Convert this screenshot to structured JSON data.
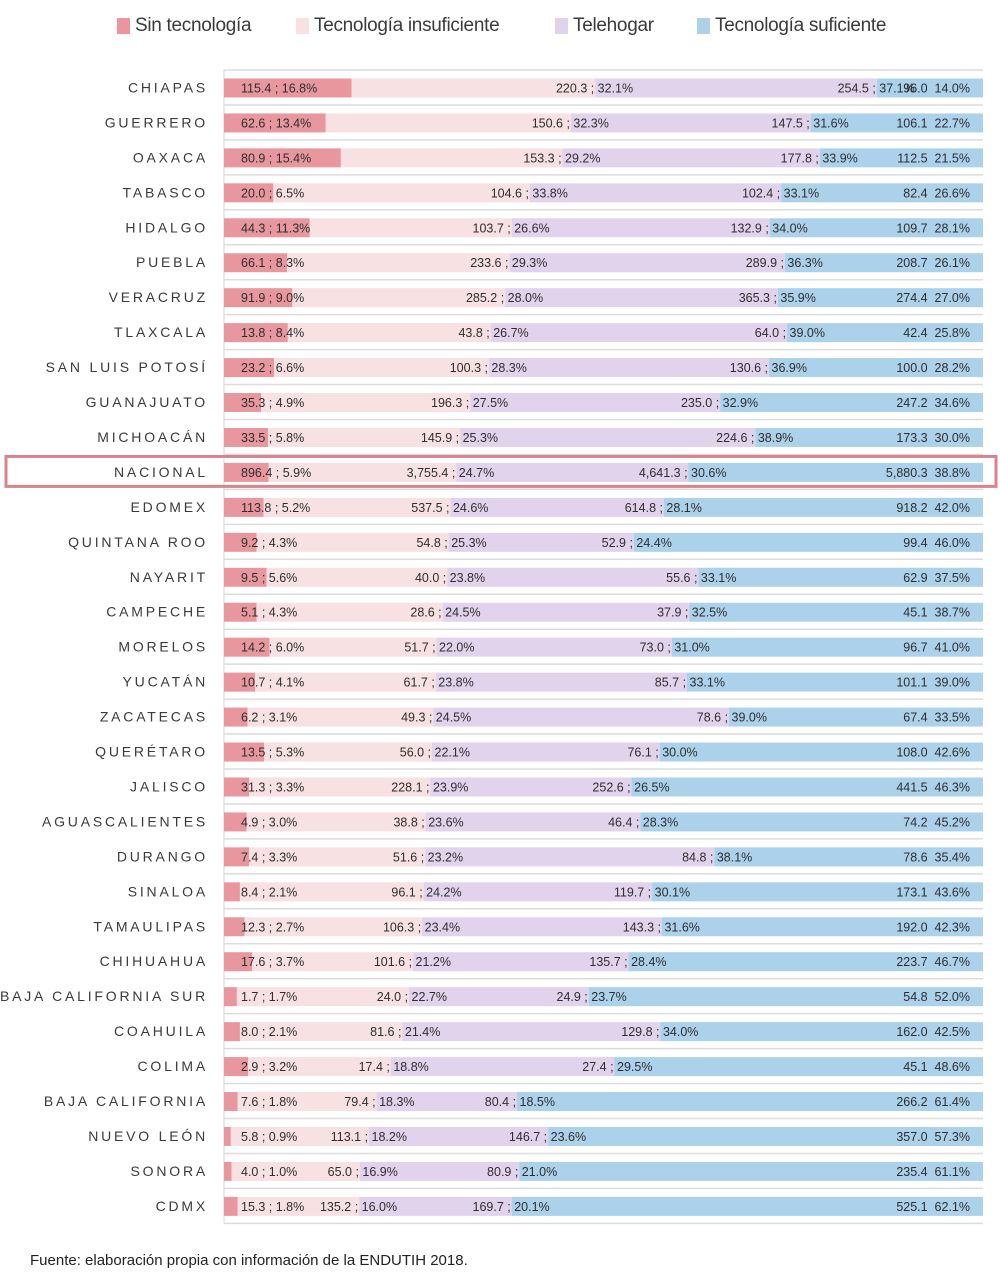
{
  "chart_data": {
    "type": "bar",
    "orientation": "horizontal",
    "stacked": "100%",
    "title": "",
    "xlabel": "",
    "ylabel": "",
    "legend_position": "top",
    "grid": true,
    "highlighted_category": "NACIONAL",
    "highlight_color": "#d9848c",
    "series": [
      {
        "name": "Sin tecnología",
        "color": "#e8979e",
        "values": [
          115.4,
          62.6,
          80.9,
          20.0,
          44.3,
          66.1,
          91.9,
          13.8,
          23.2,
          35.3,
          33.5,
          896.4,
          113.8,
          9.2,
          9.5,
          5.1,
          14.2,
          10.7,
          6.2,
          13.5,
          31.3,
          4.9,
          7.4,
          8.4,
          12.3,
          17.6,
          1.7,
          8.0,
          2.9,
          7.6,
          5.8,
          4.0,
          15.3
        ],
        "percents": [
          16.8,
          13.4,
          15.4,
          6.5,
          11.3,
          8.3,
          9.0,
          8.4,
          6.6,
          4.9,
          5.8,
          5.9,
          5.2,
          4.3,
          5.6,
          4.3,
          6.0,
          4.1,
          3.1,
          5.3,
          3.3,
          3.0,
          3.3,
          2.1,
          2.7,
          3.7,
          1.7,
          2.1,
          3.2,
          1.8,
          0.9,
          1.0,
          1.8
        ],
        "labels": [
          "115.4 ; 16.8%",
          "62.6 ; 13.4%",
          "80.9 ; 15.4%",
          "20.0 ; 6.5%",
          "44.3 ; 11.3%",
          "66.1 ; 8.3%",
          "91.9 ; 9.0%",
          "13.8 ; 8.4%",
          "23.2 ; 6.6%",
          "35.3 ; 4.9%",
          "33.5 ; 5.8%",
          "896.4 ; 5.9%",
          "113.8 ; 5.2%",
          "9.2 ; 4.3%",
          "9.5 ; 5.6%",
          "5.1 ; 4.3%",
          "14.2 ; 6.0%",
          "10.7 ; 4.1%",
          "6.2 ; 3.1%",
          "13.5 ; 5.3%",
          "31.3 ; 3.3%",
          "4.9 ; 3.0%",
          "7.4 ; 3.3%",
          "8.4 ; 2.1%",
          "12.3 ; 2.7%",
          "17.6 ; 3.7%",
          "1.7 ; 1.7%",
          "8.0 ; 2.1%",
          "2.9 ; 3.2%",
          "7.6 ; 1.8%",
          "5.8 ; 0.9%",
          "4.0 ; 1.0%",
          "15.3 ; 1.8%"
        ]
      },
      {
        "name": "Tecnología insuficiente",
        "color": "#f7e1e2",
        "values": [
          220.3,
          150.6,
          153.3,
          104.6,
          103.7,
          233.6,
          285.2,
          43.8,
          100.3,
          196.3,
          145.9,
          3755.4,
          537.5,
          54.8,
          40.0,
          28.6,
          51.7,
          61.7,
          49.3,
          56.0,
          228.1,
          38.8,
          51.6,
          96.1,
          106.3,
          101.6,
          24.0,
          81.6,
          17.4,
          79.4,
          113.1,
          65.0,
          135.2
        ],
        "percents": [
          32.1,
          32.3,
          29.2,
          33.8,
          26.6,
          29.3,
          28.0,
          26.7,
          28.3,
          27.5,
          25.3,
          24.7,
          24.6,
          25.3,
          23.8,
          24.5,
          22.0,
          23.8,
          24.5,
          22.1,
          23.9,
          23.6,
          23.2,
          24.2,
          23.4,
          21.2,
          22.7,
          21.4,
          18.8,
          18.3,
          18.2,
          16.9,
          16.0
        ],
        "labels": [
          "220.3 ; 32.1%",
          "150.6 ; 32.3%",
          "153.3 ; 29.2%",
          "104.6 ; 33.8%",
          "103.7 ; 26.6%",
          "233.6 ; 29.3%",
          "285.2 ; 28.0%",
          "43.8 ; 26.7%",
          "100.3 ; 28.3%",
          "196.3 ; 27.5%",
          "145.9 ; 25.3%",
          "3,755.4 ; 24.7%",
          "537.5 ; 24.6%",
          "54.8 ; 25.3%",
          "40.0 ; 23.8%",
          "28.6 ; 24.5%",
          "51.7 ; 22.0%",
          "61.7 ; 23.8%",
          "49.3 ; 24.5%",
          "56.0 ; 22.1%",
          "228.1 ; 23.9%",
          "38.8 ; 23.6%",
          "51.6 ; 23.2%",
          "96.1 ; 24.2%",
          "106.3 ; 23.4%",
          "101.6 ; 21.2%",
          "24.0 ; 22.7%",
          "81.6 ; 21.4%",
          "17.4 ; 18.8%",
          "79.4 ; 18.3%",
          "113.1 ; 18.2%",
          "65.0 ; 16.9%",
          "135.2 ; 16.0%"
        ]
      },
      {
        "name": "Telehogar",
        "color": "#e2d3ec",
        "values": [
          254.5,
          147.5,
          177.8,
          102.4,
          132.9,
          289.9,
          365.3,
          64.0,
          130.6,
          235.0,
          224.6,
          4641.3,
          614.8,
          52.9,
          55.6,
          37.9,
          73.0,
          85.7,
          78.6,
          76.1,
          252.6,
          46.4,
          84.8,
          119.7,
          143.3,
          135.7,
          24.9,
          129.8,
          27.4,
          80.4,
          146.7,
          80.9,
          169.7
        ],
        "percents": [
          37.1,
          31.6,
          33.9,
          33.1,
          34.0,
          36.3,
          35.9,
          39.0,
          36.9,
          32.9,
          38.9,
          30.6,
          28.1,
          24.4,
          33.1,
          32.5,
          31.0,
          33.1,
          39.0,
          30.0,
          26.5,
          28.3,
          38.1,
          30.1,
          31.6,
          28.4,
          23.7,
          34.0,
          29.5,
          18.5,
          23.6,
          21.0,
          20.1
        ],
        "labels": [
          "254.5 ; 37.1%",
          "147.5 ; 31.6%",
          "177.8 ; 33.9%",
          "102.4 ; 33.1%",
          "132.9 ; 34.0%",
          "289.9 ; 36.3%",
          "365.3 ; 35.9%",
          "64.0 ; 39.0%",
          "130.6 ; 36.9%",
          "235.0 ; 32.9%",
          "224.6 ; 38.9%",
          "4,641.3 ; 30.6%",
          "614.8 ; 28.1%",
          "52.9 ; 24.4%",
          "55.6 ; 33.1%",
          "37.9 ; 32.5%",
          "73.0 ; 31.0%",
          "85.7 ; 33.1%",
          "78.6 ; 39.0%",
          "76.1 ; 30.0%",
          "252.6 ; 26.5%",
          "46.4 ; 28.3%",
          "84.8 ; 38.1%",
          "119.7 ; 30.1%",
          "143.3 ; 31.6%",
          "135.7 ; 28.4%",
          "24.9 ; 23.7%",
          "129.8 ; 34.0%",
          "27.4 ; 29.5%",
          "80.4 ; 18.5%",
          "146.7 ; 23.6%",
          "80.9 ; 21.0%",
          "169.7 ; 20.1%"
        ]
      },
      {
        "name": "Tecnología suficiente",
        "color": "#acd1ea",
        "values": [
          96.0,
          106.1,
          112.5,
          82.4,
          109.7,
          208.7,
          274.4,
          42.4,
          100.0,
          247.2,
          173.3,
          5880.3,
          918.2,
          99.4,
          62.9,
          45.1,
          96.7,
          101.1,
          67.4,
          108.0,
          441.5,
          74.2,
          78.6,
          173.1,
          192.0,
          223.7,
          54.8,
          162.0,
          45.1,
          266.2,
          357.0,
          235.4,
          525.1
        ],
        "percents": [
          14.0,
          22.7,
          21.5,
          26.6,
          28.1,
          26.1,
          27.0,
          25.8,
          28.2,
          34.6,
          30.0,
          38.8,
          42.0,
          46.0,
          37.5,
          38.7,
          41.0,
          39.0,
          33.5,
          42.6,
          46.3,
          45.2,
          35.4,
          43.6,
          42.3,
          46.7,
          52.0,
          42.5,
          48.6,
          61.4,
          57.3,
          61.1,
          62.1
        ],
        "labels": [
          "96.0  14.0%",
          "106.1  22.7%",
          "112.5  21.5%",
          "82.4  26.6%",
          "109.7  28.1%",
          "208.7  26.1%",
          "274.4  27.0%",
          "42.4  25.8%",
          "100.0  28.2%",
          "247.2  34.6%",
          "173.3  30.0%",
          "5,880.3  38.8%",
          "918.2  42.0%",
          "99.4  46.0%",
          "62.9  37.5%",
          "45.1  38.7%",
          "96.7  41.0%",
          "101.1  39.0%",
          "67.4  33.5%",
          "108.0  42.6%",
          "441.5  46.3%",
          "74.2  45.2%",
          "78.6  35.4%",
          "173.1  43.6%",
          "192.0  42.3%",
          "223.7  46.7%",
          "54.8  52.0%",
          "162.0  42.5%",
          "45.1  48.6%",
          "266.2  61.4%",
          "357.0  57.3%",
          "235.4  61.1%",
          "525.1  62.1%"
        ]
      }
    ],
    "categories": [
      "CHIAPAS",
      "GUERRERO",
      "OAXACA",
      "TABASCO",
      "HIDALGO",
      "PUEBLA",
      "VERACRUZ",
      "TLAXCALA",
      "SAN LUIS POTOSÍ",
      "GUANAJUATO",
      "MICHOACÁN",
      "NACIONAL",
      "EDOMEX",
      "QUINTANA ROO",
      "NAYARIT",
      "CAMPECHE",
      "MORELOS",
      "YUCATÁN",
      "ZACATECAS",
      "QUERÉTARO",
      "JALISCO",
      "AGUASCALIENTES",
      "DURANGO",
      "SINALOA",
      "TAMAULIPAS",
      "CHIHUAHUA",
      "BAJA CALIFORNIA SUR",
      "COAHUILA",
      "COLIMA",
      "BAJA CALIFORNIA",
      "NUEVO LEÓN",
      "SONORA",
      "CDMX"
    ],
    "xlim": [
      0,
      100
    ]
  },
  "source_note": "Fuente: elaboración propia con información de la ENDUTIH 2018."
}
